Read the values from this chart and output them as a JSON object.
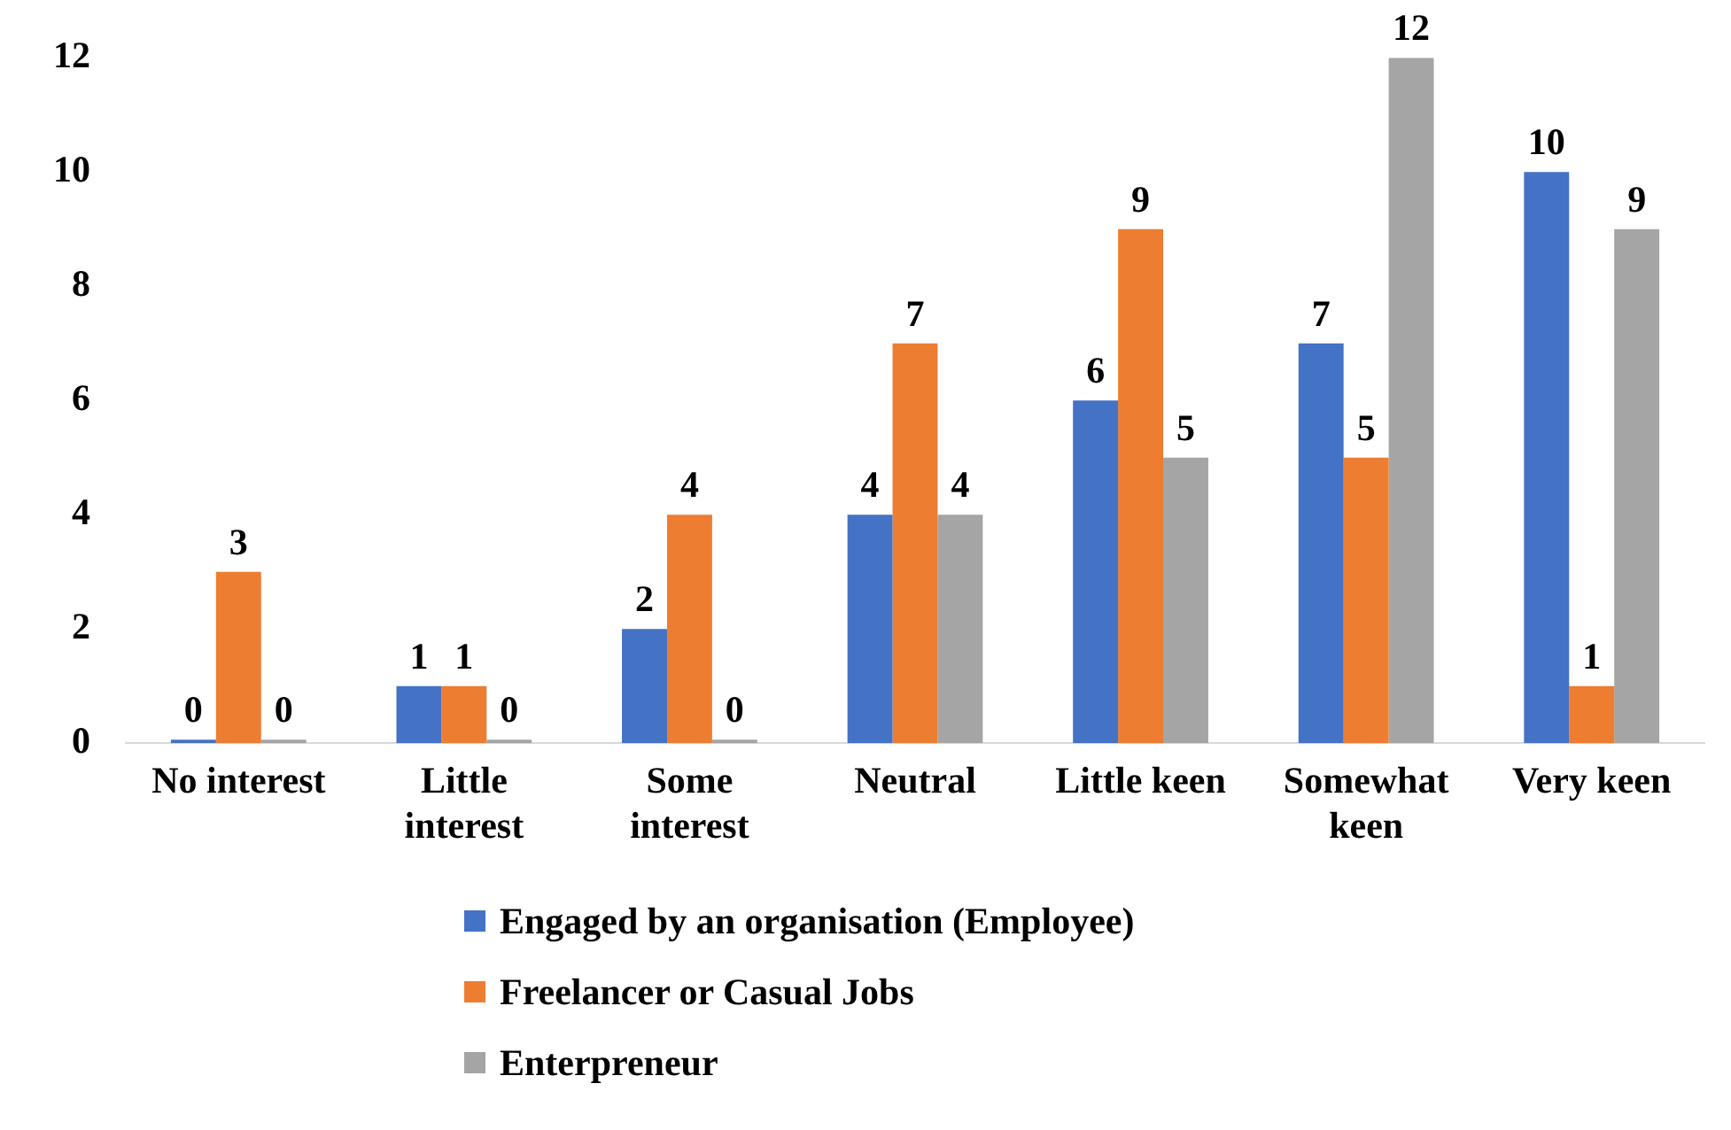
{
  "chart_data": {
    "type": "bar",
    "categories": [
      "No interest",
      "Little interest",
      "Some interest",
      "Neutral",
      "Little keen",
      "Somewhat keen",
      "Very keen"
    ],
    "series": [
      {
        "name": "Engaged by an organisation (Employee)",
        "color": "#4472c4",
        "values": [
          0,
          1,
          2,
          4,
          6,
          7,
          10
        ]
      },
      {
        "name": "Freelancer or Casual Jobs",
        "color": "#ed7d31",
        "values": [
          3,
          1,
          4,
          7,
          9,
          5,
          1
        ]
      },
      {
        "name": "Enterpreneur",
        "color": "#a5a5a5",
        "values": [
          0,
          0,
          0,
          4,
          5,
          12,
          9
        ]
      }
    ],
    "ylim": [
      0,
      12
    ],
    "yticks": [
      0,
      2,
      4,
      6,
      8,
      10,
      12
    ],
    "grid": false,
    "legend": "bottom",
    "data_labels": true
  }
}
